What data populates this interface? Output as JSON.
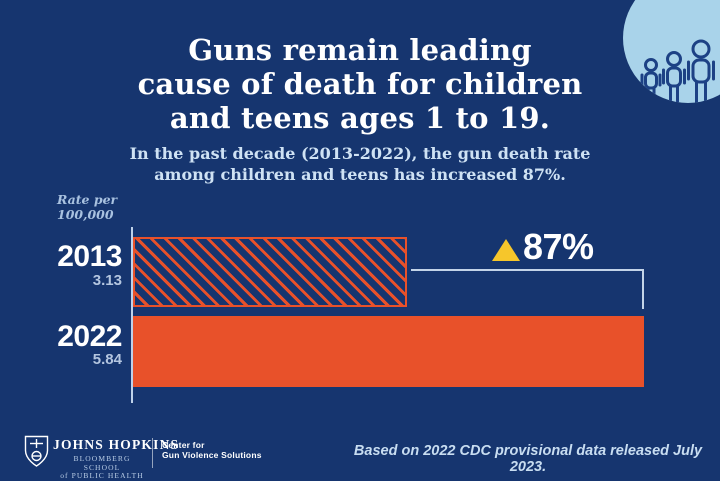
{
  "colors": {
    "background": "#16356f",
    "bar_orange": "#e8512a",
    "triangle_yellow": "#f6c62b",
    "circle_light_blue": "#a9d3ea",
    "muted_text": "#a9c2e0",
    "bracket_line": "#c3d4e8"
  },
  "header": {
    "title_lines": [
      "Guns remain leading",
      "cause of death for children",
      "and teens ages 1 to 19."
    ],
    "subtitle_lines": [
      "In the past decade (2013-2022), the gun death rate",
      "among children and teens has increased 87%."
    ]
  },
  "chart": {
    "axis_label_lines": [
      "Rate per",
      "100,000"
    ],
    "rows": [
      {
        "year": "2013",
        "value": "3.13"
      },
      {
        "year": "2022",
        "value": "5.84"
      }
    ],
    "annotation": {
      "icon": "up-triangle",
      "text": "87%"
    }
  },
  "chart_data": {
    "type": "bar",
    "orientation": "horizontal",
    "categories": [
      "2013",
      "2022"
    ],
    "values": [
      3.13,
      5.84
    ],
    "value_labels": [
      "3.13",
      "5.84"
    ],
    "title": "Guns remain leading cause of death for children and teens ages 1 to 19.",
    "subtitle": "In the past decade (2013-2022), the gun death rate among children and teens has increased 87%.",
    "ylabel": "Rate per 100,000",
    "xlim": [
      0,
      6.6
    ],
    "grid": false,
    "legend": false,
    "annotations": [
      "▲87%"
    ],
    "bar_styles": [
      "hatched-diagonal",
      "solid"
    ],
    "bar_color": "#e8512a"
  },
  "footer": {
    "logo": {
      "org": "JOHNS HOPKINS",
      "school_line1": "BLOOMBERG SCHOOL",
      "school_line2": "of PUBLIC HEALTH"
    },
    "center_line1": "Center for",
    "center_line2": "Gun Violence Solutions",
    "source_note": "Based on 2022 CDC provisional data released July 2023."
  }
}
